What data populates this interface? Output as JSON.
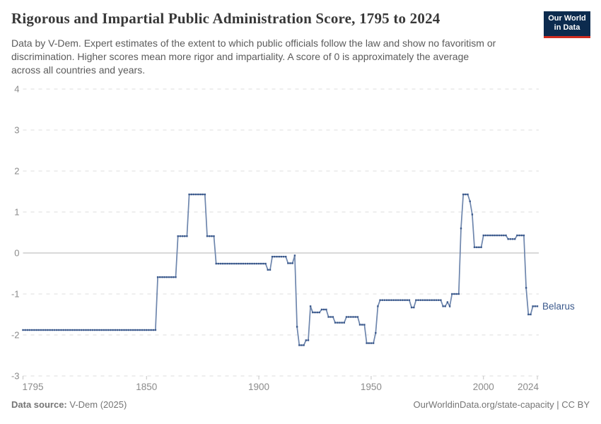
{
  "header": {
    "title": "Rigorous and Impartial Public Administration Score, 1795 to 2024",
    "subtitle_lines": [
      "Data by V-Dem. Expert estimates of the extent to which public officials follow the law and show no favoritism or",
      "discrimination. Higher scores mean more rigor and impartiality. A score of 0 is approximately the average",
      "across all countries and years."
    ],
    "logo": {
      "line1": "Our World",
      "line2": "in Data",
      "bg_color": "#0c2b4e",
      "accent_color": "#cf2c20"
    }
  },
  "chart_data": {
    "type": "line",
    "title": "Rigorous and Impartial Public Administration Score, 1795 to 2024",
    "entity_label": "Belarus",
    "x_range": [
      1795,
      2024
    ],
    "y_range": [
      -3,
      4
    ],
    "xticks": [
      1795,
      1850,
      1900,
      1950,
      2000,
      2024
    ],
    "yticks": [
      4,
      3,
      2,
      1,
      0,
      -1,
      -2,
      -3
    ],
    "grid": "horizontal dashed gridlines, solid line at 0",
    "legend_position": "end-of-line label",
    "line_color": "#6e86ad",
    "marker_color": "#3b598c",
    "zero_line_color": "#b3b3b3",
    "grid_color": "#dcdcdc",
    "axis_text_color": "#8b8b8b",
    "series": [
      {
        "name": "Belarus",
        "note": "annual values 1795-2024, encoded as [startYear, endYear, score] runs",
        "segments": [
          [
            1795,
            1854,
            -1.88
          ],
          [
            1855,
            1863,
            -0.59
          ],
          [
            1864,
            1868,
            0.41
          ],
          [
            1869,
            1876,
            1.43
          ],
          [
            1877,
            1880,
            0.41
          ],
          [
            1881,
            1903,
            -0.26
          ],
          [
            1904,
            1905,
            -0.41
          ],
          [
            1906,
            1912,
            -0.09
          ],
          [
            1913,
            1915,
            -0.25
          ],
          [
            1916,
            1916,
            -0.06
          ],
          [
            1917,
            1917,
            -1.8
          ],
          [
            1918,
            1920,
            -2.25
          ],
          [
            1921,
            1922,
            -2.13
          ],
          [
            1923,
            1923,
            -1.3
          ],
          [
            1924,
            1927,
            -1.45
          ],
          [
            1928,
            1930,
            -1.38
          ],
          [
            1931,
            1933,
            -1.56
          ],
          [
            1934,
            1938,
            -1.7
          ],
          [
            1939,
            1944,
            -1.56
          ],
          [
            1945,
            1947,
            -1.75
          ],
          [
            1948,
            1951,
            -2.2
          ],
          [
            1952,
            1952,
            -1.95
          ],
          [
            1953,
            1953,
            -1.3
          ],
          [
            1954,
            1967,
            -1.15
          ],
          [
            1968,
            1969,
            -1.33
          ],
          [
            1970,
            1981,
            -1.15
          ],
          [
            1982,
            1983,
            -1.3
          ],
          [
            1984,
            1984,
            -1.2
          ],
          [
            1985,
            1985,
            -1.3
          ],
          [
            1986,
            1989,
            -1.0
          ],
          [
            1990,
            1990,
            0.6
          ],
          [
            1991,
            1993,
            1.43
          ],
          [
            1994,
            1994,
            1.26
          ],
          [
            1995,
            1995,
            0.94
          ],
          [
            1996,
            1999,
            0.14
          ],
          [
            2000,
            2010,
            0.43
          ],
          [
            2011,
            2014,
            0.34
          ],
          [
            2015,
            2018,
            0.43
          ],
          [
            2019,
            2019,
            -0.85
          ],
          [
            2020,
            2021,
            -1.5
          ],
          [
            2022,
            2024,
            -1.3
          ]
        ]
      }
    ]
  },
  "footer": {
    "source_label": "Data source:",
    "source_value": " V-Dem (2025)",
    "credit": "OurWorldinData.org/state-capacity | CC BY"
  }
}
